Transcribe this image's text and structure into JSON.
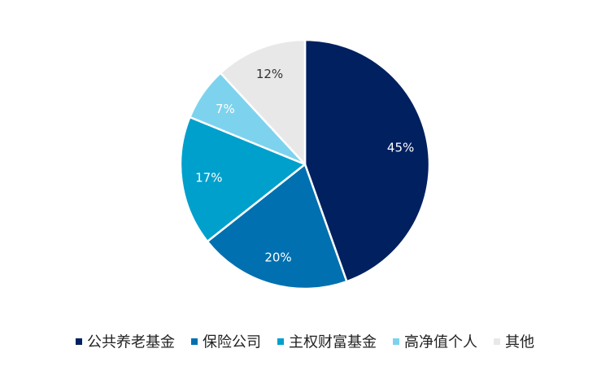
{
  "chart_data": {
    "type": "pie",
    "title": "",
    "slices": [
      {
        "label": "公共养老基金",
        "value": 45,
        "display": "45%",
        "color": "#002060",
        "text_color": "#ffffff"
      },
      {
        "label": "保险公司",
        "value": 20,
        "display": "20%",
        "color": "#0070b0",
        "text_color": "#ffffff"
      },
      {
        "label": "主权财富基金",
        "value": 17,
        "display": "17%",
        "color": "#00a0cc",
        "text_color": "#ffffff"
      },
      {
        "label": "高净值个人",
        "value": 7,
        "display": "7%",
        "color": "#7dd3ee",
        "text_color": "#ffffff"
      },
      {
        "label": "其他",
        "value": 12,
        "display": "12%",
        "color": "#e8e8e8",
        "text_color": "#333333"
      }
    ],
    "start_angle_deg": 0,
    "direction": "clockwise",
    "legend_position": "bottom"
  }
}
